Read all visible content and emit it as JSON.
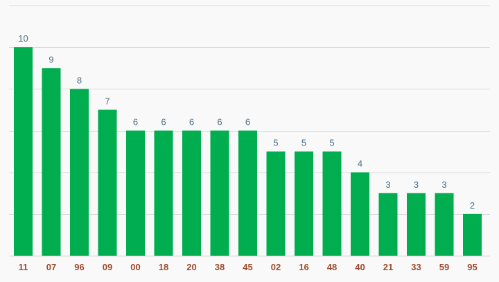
{
  "chart_data": {
    "type": "bar",
    "categories": [
      "11",
      "07",
      "96",
      "09",
      "00",
      "18",
      "20",
      "38",
      "45",
      "02",
      "16",
      "48",
      "40",
      "21",
      "33",
      "59",
      "95"
    ],
    "values": [
      10,
      9,
      8,
      7,
      6,
      6,
      6,
      6,
      6,
      5,
      5,
      5,
      4,
      3,
      3,
      3,
      2
    ],
    "title": "",
    "xlabel": "",
    "ylabel": "",
    "ylim": [
      0,
      12
    ],
    "grid": true,
    "legend": "none",
    "colors": {
      "bar": "#00ad4f",
      "value_label": "#4a6f8a",
      "category_label": "#9b4a2c",
      "grid": "#d9d9d9",
      "background": "#f9f9f9"
    }
  }
}
